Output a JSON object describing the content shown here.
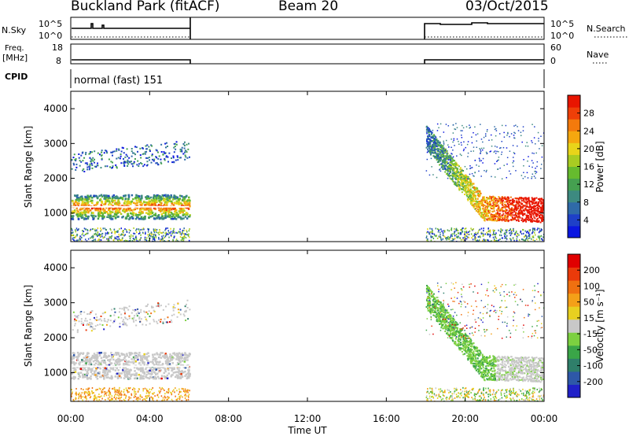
{
  "header": {
    "site": "Buckland Park (fitACF)",
    "beam": "Beam 20",
    "date": "03/Oct/2015"
  },
  "status_panels": {
    "nsky_label": "N.Sky",
    "nsky_ticks": [
      "10^5",
      "10^0"
    ],
    "nsearch_label": "N.Search",
    "nsearch_ticks": [
      "10^5",
      "10^0"
    ],
    "freq_label": "Freq.",
    "freq_unit": "[MHz]",
    "freq_ticks": [
      "18",
      "8"
    ],
    "nave_label": "Nave",
    "nave_ticks": [
      "60",
      "0"
    ],
    "cpid_label": "CPID",
    "cpid_value": "normal (fast) 151"
  },
  "x_axis": {
    "label": "Time UT",
    "ticks": [
      "00:00",
      "04:00",
      "08:00",
      "12:00",
      "16:00",
      "20:00",
      "00:00"
    ]
  },
  "chart_data": [
    {
      "type": "heatmap",
      "quantity": "power",
      "ylabel": "Slant Range [km]",
      "yticks": [
        1000,
        2000,
        3000,
        4000
      ],
      "ylim": [
        180,
        4500
      ],
      "xlim_hours": [
        0,
        24
      ],
      "data_gap_hours": [
        6,
        18
      ],
      "colorbar": {
        "label": "Power [dB]",
        "ticks": [
          "4",
          "8",
          "12",
          "16",
          "20",
          "24",
          "28"
        ],
        "colors": [
          "#0a16e0",
          "#1e40c8",
          "#2f6aa8",
          "#3d8a80",
          "#45a050",
          "#66bb2e",
          "#a8cc22",
          "#e8d41a",
          "#f5a70f",
          "#f47a0c",
          "#ef3f08",
          "#e81500"
        ]
      }
    },
    {
      "type": "heatmap",
      "quantity": "velocity",
      "ylabel": "Slant Range [km]",
      "yticks": [
        1000,
        2000,
        3000,
        4000
      ],
      "ylim": [
        180,
        4500
      ],
      "xlim_hours": [
        0,
        24
      ],
      "data_gap_hours": [
        6,
        18
      ],
      "colorbar": {
        "label": "Velocity [m s⁻¹]",
        "ticks": [
          "200",
          "100",
          "50",
          "15",
          "-15",
          "-50",
          "-100",
          "-200"
        ],
        "colors": [
          "#2020c8",
          "#2e58a8",
          "#2f7f6a",
          "#3aa548",
          "#7cd040",
          "#c8c8c8",
          "#e8d020",
          "#f4a018",
          "#f07010",
          "#ea3a0a",
          "#e00000"
        ]
      }
    }
  ]
}
